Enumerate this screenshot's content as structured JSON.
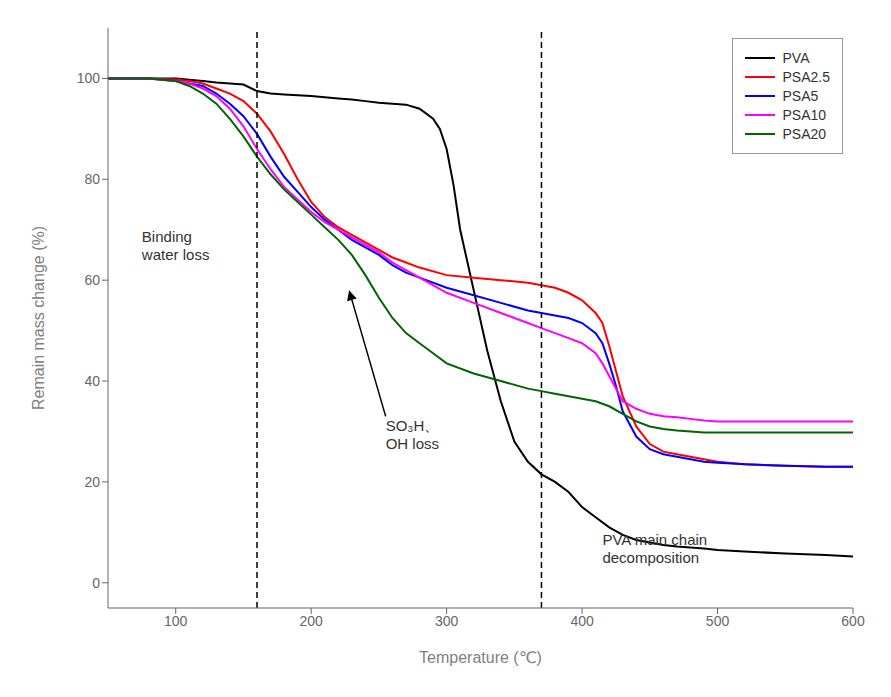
{
  "chart_data": {
    "type": "line",
    "xlabel": "Temperature (℃)",
    "ylabel": "Remain mass change (%)",
    "xlim": [
      50,
      600
    ],
    "ylim": [
      -5,
      110
    ],
    "xticks": [
      100,
      200,
      300,
      400,
      500,
      600
    ],
    "yticks": [
      0,
      20,
      40,
      60,
      80,
      100
    ],
    "grid": false,
    "legend": "upper right",
    "vlines": [
      160,
      370
    ],
    "annotations": [
      {
        "text": "Binding\nwater loss",
        "x": 75,
        "y": 67
      },
      {
        "text": "SO₃H、\nOH loss",
        "x": 255,
        "y": 33,
        "arrow_x": 228,
        "arrow_y": 58
      },
      {
        "text": "PVA main chain\ndecomposition",
        "x": 415,
        "y": 4
      }
    ],
    "series": [
      {
        "name": "PVA",
        "color": "#000000",
        "x": [
          50,
          80,
          100,
          120,
          130,
          140,
          150,
          160,
          170,
          180,
          200,
          220,
          230,
          240,
          250,
          260,
          270,
          280,
          290,
          295,
          300,
          305,
          310,
          320,
          330,
          340,
          350,
          360,
          370,
          380,
          390,
          400,
          410,
          420,
          430,
          440,
          450,
          460,
          470,
          480,
          490,
          500,
          520,
          550,
          580,
          600
        ],
        "values": [
          100,
          100,
          100,
          99.5,
          99.2,
          99.0,
          98.8,
          97.5,
          97.0,
          96.8,
          96.5,
          96.0,
          95.8,
          95.5,
          95.2,
          95.0,
          94.8,
          94.0,
          92.0,
          90.0,
          86.0,
          79.0,
          70.0,
          58.0,
          46.0,
          36.0,
          28.0,
          24.0,
          21.5,
          20.0,
          18.0,
          15.0,
          13.0,
          11.0,
          9.5,
          8.5,
          8.0,
          7.5,
          7.2,
          7.0,
          6.8,
          6.5,
          6.2,
          5.8,
          5.5,
          5.2
        ]
      },
      {
        "name": "PSA2.5",
        "color": "#ff0000",
        "x": [
          50,
          80,
          100,
          110,
          120,
          130,
          140,
          150,
          160,
          170,
          180,
          190,
          200,
          210,
          220,
          230,
          240,
          250,
          260,
          270,
          280,
          300,
          320,
          340,
          360,
          370,
          380,
          390,
          400,
          410,
          415,
          420,
          425,
          430,
          440,
          450,
          460,
          470,
          480,
          490,
          500,
          520,
          550,
          580,
          600
        ],
        "values": [
          100,
          100,
          99.8,
          99.5,
          99.0,
          98.0,
          97.0,
          95.5,
          93.0,
          89.5,
          85.0,
          80.0,
          75.5,
          72.5,
          70.5,
          69.0,
          67.5,
          66.0,
          64.5,
          63.5,
          62.5,
          61.0,
          60.5,
          60.0,
          59.5,
          59.0,
          58.5,
          57.5,
          56.0,
          53.5,
          51.5,
          47.0,
          42.0,
          37.0,
          31.0,
          27.5,
          26.0,
          25.5,
          25.0,
          24.5,
          24.0,
          23.5,
          23.2,
          23.0,
          23.0
        ]
      },
      {
        "name": "PSA5",
        "color": "#0000ff",
        "x": [
          50,
          80,
          100,
          110,
          120,
          130,
          140,
          150,
          160,
          170,
          180,
          190,
          200,
          210,
          220,
          230,
          240,
          250,
          260,
          270,
          280,
          300,
          320,
          340,
          360,
          370,
          380,
          390,
          400,
          410,
          415,
          420,
          425,
          430,
          440,
          450,
          460,
          470,
          480,
          490,
          500,
          520,
          550,
          580,
          600
        ],
        "values": [
          100,
          100,
          99.5,
          99.0,
          98.5,
          97.0,
          95.0,
          92.5,
          89.0,
          84.5,
          80.5,
          77.5,
          74.5,
          72.0,
          70.0,
          68.0,
          66.5,
          65.0,
          63.0,
          61.5,
          60.5,
          58.5,
          57.0,
          55.5,
          54.0,
          53.5,
          53.0,
          52.5,
          51.5,
          49.5,
          47.5,
          43.5,
          39.0,
          34.0,
          29.0,
          26.5,
          25.5,
          25.0,
          24.5,
          24.0,
          23.8,
          23.5,
          23.2,
          23.0,
          23.0
        ]
      },
      {
        "name": "PSA10",
        "color": "#ff00ff",
        "x": [
          50,
          80,
          100,
          110,
          120,
          130,
          140,
          150,
          160,
          170,
          180,
          190,
          200,
          210,
          220,
          230,
          240,
          250,
          260,
          270,
          280,
          300,
          320,
          340,
          360,
          370,
          380,
          390,
          400,
          410,
          415,
          420,
          425,
          430,
          440,
          450,
          460,
          470,
          480,
          490,
          500,
          520,
          550,
          580,
          600
        ],
        "values": [
          100,
          100,
          99.5,
          99.0,
          98.0,
          96.5,
          94.0,
          90.5,
          86.0,
          82.0,
          78.5,
          76.0,
          73.5,
          71.5,
          70.0,
          68.5,
          67.0,
          65.5,
          63.5,
          62.0,
          60.5,
          57.5,
          55.5,
          53.5,
          51.5,
          50.5,
          49.5,
          48.5,
          47.5,
          45.5,
          43.5,
          41.0,
          38.5,
          36.0,
          34.5,
          33.5,
          33.0,
          32.8,
          32.5,
          32.2,
          32.0,
          32.0,
          32.0,
          32.0,
          32.0
        ]
      },
      {
        "name": "PSA20",
        "color": "#006400",
        "x": [
          50,
          80,
          100,
          110,
          120,
          130,
          140,
          150,
          160,
          170,
          180,
          190,
          200,
          210,
          220,
          230,
          240,
          250,
          260,
          270,
          280,
          290,
          300,
          320,
          340,
          360,
          370,
          380,
          390,
          400,
          410,
          420,
          430,
          440,
          450,
          460,
          470,
          480,
          490,
          500,
          520,
          550,
          580,
          600
        ],
        "values": [
          100,
          100,
          99.5,
          98.5,
          97.0,
          95.0,
          92.0,
          88.5,
          84.5,
          81.0,
          78.0,
          75.5,
          73.0,
          70.5,
          68.0,
          65.0,
          61.0,
          56.5,
          52.5,
          49.5,
          47.5,
          45.5,
          43.5,
          41.5,
          40.0,
          38.5,
          38.0,
          37.5,
          37.0,
          36.5,
          36.0,
          35.0,
          33.5,
          32.0,
          31.0,
          30.5,
          30.2,
          30.0,
          29.8,
          29.8,
          29.8,
          29.8,
          29.8,
          29.8
        ]
      }
    ]
  }
}
